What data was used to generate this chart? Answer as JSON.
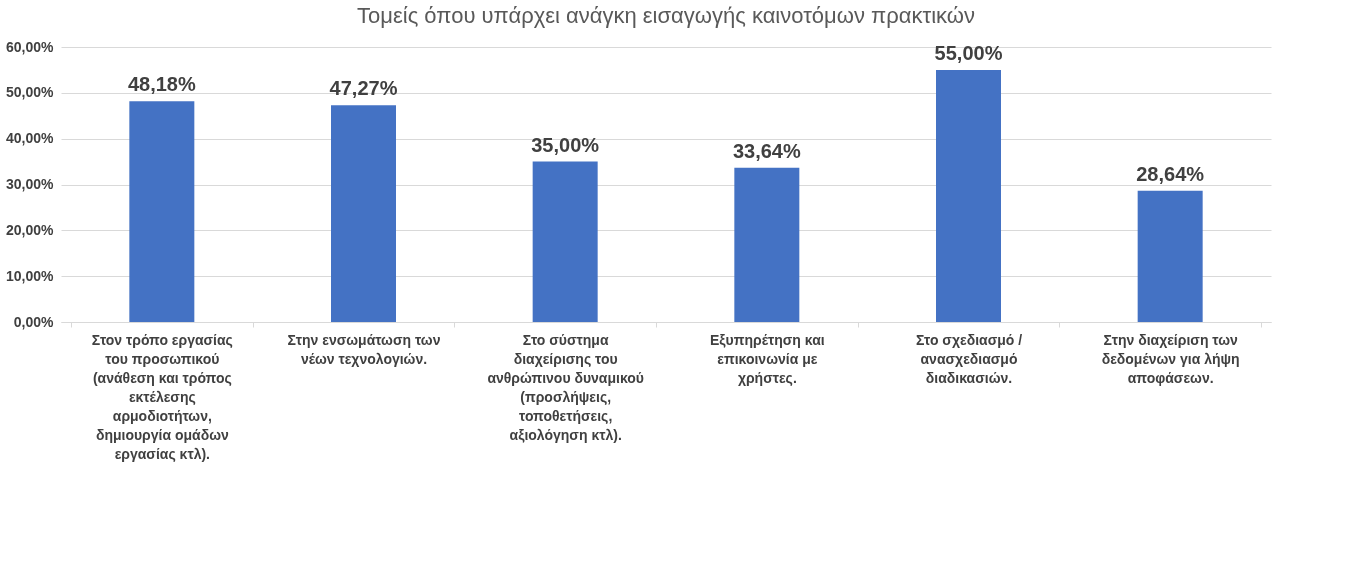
{
  "chart_data": {
    "type": "bar",
    "title": "Τομείς όπου υπάρχει ανάγκη εισαγωγής καινοτόμων πρακτικών",
    "categories": [
      "Στον τρόπο εργασίας του προσωπικού (ανάθεση και τρόπος εκτέλεσης αρμοδιοτήτων, δημιουργία ομάδων εργασίας κτλ).",
      "Στην ενσωμάτωση των νέων τεχνολογιών.",
      "Στο σύστημα διαχείρισης του ανθρώπινου δυναμικού (προσλήψεις, τοποθετήσεις, αξιολόγηση κτλ).",
      "Εξυπηρέτηση και επικοινωνία με χρήστες.",
      "Στο σχεδιασμό / ανασχεδιασμό διαδικασιών.",
      "Στην διαχείριση των δεδομένων για λήψη αποφάσεων."
    ],
    "values": [
      48.18,
      47.27,
      35.0,
      33.64,
      55.0,
      28.64
    ],
    "value_labels": [
      "48,18%",
      "47,27%",
      "35,00%",
      "33,64%",
      "55,00%",
      "28,64%"
    ],
    "color": "#4472c4",
    "ylim": [
      0,
      60
    ],
    "yticks": [
      {
        "value": 0,
        "label": "0,00%"
      },
      {
        "value": 10,
        "label": "10,00%"
      },
      {
        "value": 20,
        "label": "20,00%"
      },
      {
        "value": 30,
        "label": "30,00%"
      },
      {
        "value": 40,
        "label": "40,00%"
      },
      {
        "value": 50,
        "label": "50,00%"
      },
      {
        "value": 60,
        "label": "60,00%"
      }
    ],
    "grid": "y"
  }
}
